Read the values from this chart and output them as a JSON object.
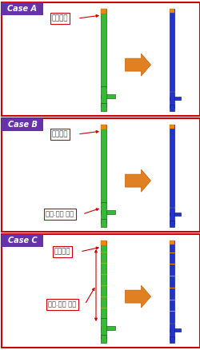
{
  "cases": [
    "Case A",
    "Case B",
    "Case C"
  ],
  "case_label_color": "#6633aa",
  "case_label_text_color": "#ffffff",
  "outer_border_color": "#cc0000",
  "arrow_color": "#e08020",
  "label_border_color": "#cc0000",
  "label_text_color": "#444444",
  "background_color": "#ffffff",
  "green_body": "#33bb33",
  "green_edge": "#226622",
  "green_dark": "#228822",
  "blue_body": "#2233cc",
  "blue_edge": "#112288",
  "orange_cap": "#ee8800",
  "orange_cap_edge": "#cc6600",
  "red_arrow": "#cc0000"
}
